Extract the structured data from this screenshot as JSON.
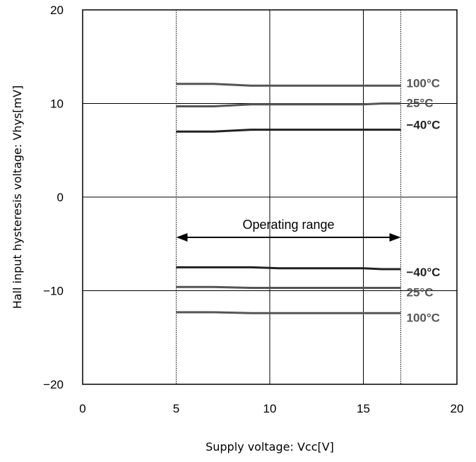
{
  "chart_data": {
    "type": "line",
    "xlabel": "Supply voltage: Vcc[V]",
    "ylabel": "Hall input hysteresis voltage: Vhys[mV]",
    "xlim": [
      0,
      20
    ],
    "ylim": [
      -20,
      20
    ],
    "x_ticks": [
      "0",
      "5",
      "10",
      "15",
      "20"
    ],
    "y_ticks": [
      "20",
      "10",
      "0",
      "−10",
      "−20"
    ],
    "x_tick_values": [
      0,
      5,
      10,
      15,
      20
    ],
    "y_tick_values": [
      20,
      10,
      0,
      -10,
      -20
    ],
    "grid": true,
    "annotation": {
      "text": "Operating range",
      "x_start": 5,
      "x_end": 17,
      "y": -4.3
    },
    "series": [
      {
        "name": "100°C",
        "color": "#555555",
        "x": [
          5,
          7,
          9,
          11,
          13,
          15,
          17
        ],
        "y": [
          12.1,
          12.1,
          11.9,
          11.9,
          11.9,
          11.9,
          11.9
        ]
      },
      {
        "name": "25°C",
        "color": "#555555",
        "x": [
          5,
          7,
          9,
          11,
          13,
          15,
          16,
          17
        ],
        "y": [
          9.7,
          9.7,
          9.9,
          9.9,
          9.9,
          9.9,
          10.0,
          10.0
        ]
      },
      {
        "name": "−40°C",
        "color": "#222222",
        "x": [
          5,
          7,
          9,
          11,
          13,
          15,
          16,
          17
        ],
        "y": [
          7.0,
          7.0,
          7.2,
          7.2,
          7.2,
          7.2,
          7.2,
          7.2
        ]
      },
      {
        "name": "−40°C",
        "color": "#222222",
        "x": [
          5,
          7,
          9,
          10.5,
          13,
          15,
          16,
          17
        ],
        "y": [
          -7.5,
          -7.5,
          -7.5,
          -7.6,
          -7.6,
          -7.6,
          -7.7,
          -7.7
        ]
      },
      {
        "name": "25°C",
        "color": "#555555",
        "x": [
          5,
          7,
          9,
          11,
          13,
          15,
          17
        ],
        "y": [
          -9.6,
          -9.6,
          -9.7,
          -9.7,
          -9.7,
          -9.7,
          -9.7
        ]
      },
      {
        "name": "100°C",
        "color": "#555555",
        "x": [
          5,
          7,
          9,
          11,
          13,
          15,
          17
        ],
        "y": [
          -12.3,
          -12.3,
          -12.4,
          -12.4,
          -12.4,
          -12.4,
          -12.4
        ]
      }
    ]
  }
}
